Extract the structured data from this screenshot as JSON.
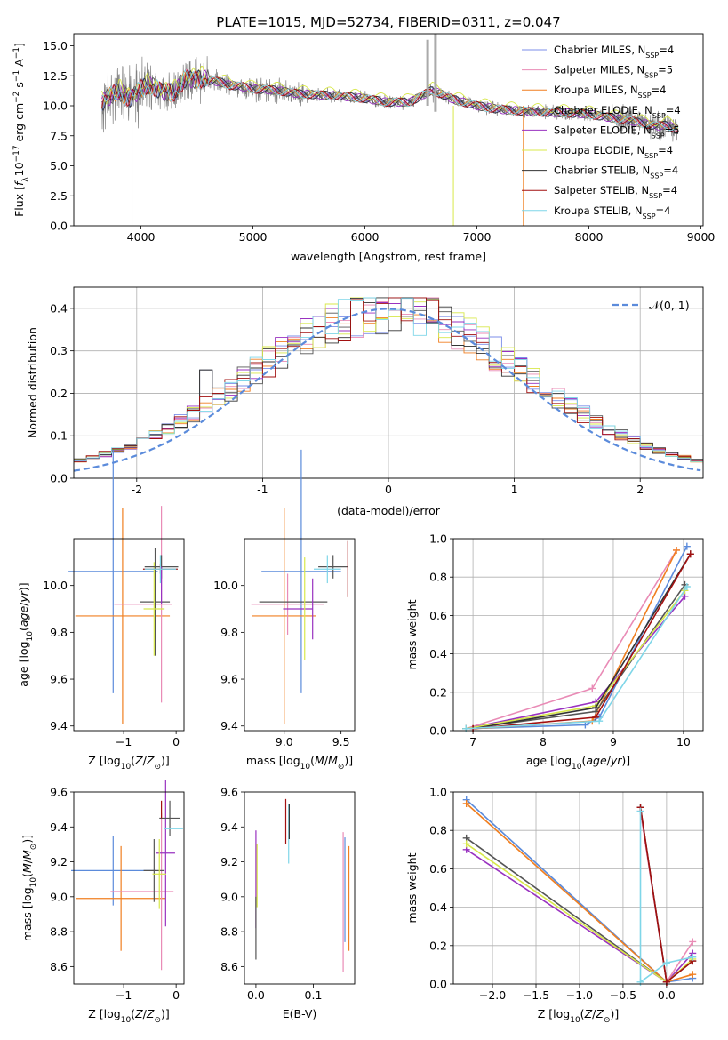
{
  "figure": {
    "title": "PLATE=1015, MJD=52734, FIBERID=0311, z=0.047",
    "fit_colors": [
      "#7b8ee8",
      "#e98bb6",
      "#f07f20",
      "#555555",
      "#9932c0",
      "#d8e84a",
      "#333333",
      "#a21010",
      "#7fd6e8"
    ]
  },
  "chart_data": [
    {
      "id": "spectrum",
      "type": "line",
      "title": "PLATE=1015, MJD=52734, FIBERID=0311, z=0.047",
      "xlabel": "wavelength [Angstrom, rest frame]",
      "ylabel": "Flux [f_λ 10^-17 erg cm^-2 s^-1 A^-1]",
      "xlim": [
        3400,
        9020
      ],
      "ylim": [
        0,
        16
      ],
      "x_ticks": [
        "4000",
        "5000",
        "6000",
        "7000",
        "8000",
        "9000"
      ],
      "y_ticks": [
        "0.0",
        "2.5",
        "5.0",
        "7.5",
        "10.0",
        "12.5",
        "15.0"
      ],
      "grid": false,
      "legend_position": "upper right",
      "legend": [
        {
          "label": "Chabrier MILES, N",
          "sub": "SSP",
          "tail": "=4"
        },
        {
          "label": "Salpeter MILES, N",
          "sub": "SSP",
          "tail": "=5"
        },
        {
          "label": "Kroupa MILES, N",
          "sub": "SSP",
          "tail": "=4"
        },
        {
          "label": "Chabrier ELODIE, N",
          "sub": "SSP",
          "tail": "=4"
        },
        {
          "label": "Salpeter ELODIE, N",
          "sub": "SSP",
          "tail": "=5"
        },
        {
          "label": "Kroupa ELODIE, N",
          "sub": "SSP",
          "tail": "=4"
        },
        {
          "label": "Chabrier STELIB, N",
          "sub": "SSP",
          "tail": "=4"
        },
        {
          "label": "Salpeter STELIB, N",
          "sub": "SSP",
          "tail": "=4"
        },
        {
          "label": "Kroupa STELIB, N",
          "sub": "SSP",
          "tail": "=4"
        }
      ],
      "data_color": "#808080",
      "continuum_points": [
        [
          3650,
          10.4
        ],
        [
          3800,
          11.1
        ],
        [
          3900,
          10.7
        ],
        [
          4000,
          11.4
        ],
        [
          4100,
          11.6
        ],
        [
          4200,
          11.3
        ],
        [
          4300,
          11.0
        ],
        [
          4400,
          12.3
        ],
        [
          4500,
          12.3
        ],
        [
          4600,
          12.1
        ],
        [
          4700,
          12.0
        ],
        [
          4800,
          11.7
        ],
        [
          4900,
          11.6
        ],
        [
          5000,
          11.4
        ],
        [
          5200,
          11.3
        ],
        [
          5400,
          11.0
        ],
        [
          5600,
          10.9
        ],
        [
          5800,
          10.8
        ],
        [
          6000,
          10.6
        ],
        [
          6200,
          10.3
        ],
        [
          6400,
          10.3
        ],
        [
          6600,
          11.3
        ],
        [
          6800,
          10.5
        ],
        [
          7000,
          10.0
        ],
        [
          7200,
          9.7
        ],
        [
          7500,
          9.5
        ],
        [
          7800,
          9.4
        ],
        [
          8000,
          9.3
        ],
        [
          8200,
          9.0
        ],
        [
          8400,
          8.7
        ],
        [
          8600,
          8.3
        ],
        [
          8700,
          8.4
        ],
        [
          8800,
          8.0
        ]
      ]
    },
    {
      "id": "residuals",
      "type": "step",
      "xlabel": "(data-model)/error",
      "ylabel": "Normed distribution",
      "xlim": [
        -2.5,
        2.5
      ],
      "ylim": [
        0,
        0.45
      ],
      "x_ticks": [
        "-2",
        "-1",
        "0",
        "1",
        "2"
      ],
      "y_ticks": [
        "0.0",
        "0.1",
        "0.2",
        "0.3",
        "0.4"
      ],
      "grid": true,
      "legend": "𝒩(0, 1)",
      "legend_position": "upper right",
      "normal_color": "#5b8bdb",
      "bin_width": 0.1
    },
    {
      "id": "age_vs_Z",
      "type": "errorbar",
      "xlabel": "Z [log10(Z/Z⊙)]",
      "ylabel": "age  [log10(age/yr)]",
      "xlim": [
        -1.95,
        0.15
      ],
      "ylim": [
        9.38,
        10.2
      ],
      "x_ticks": [
        -1,
        0
      ],
      "y_ticks": [
        9.4,
        9.6,
        9.8,
        10.0
      ],
      "points": [
        {
          "x": -1.2,
          "y": 10.06,
          "xerr": 0.85,
          "yerr": 0.52,
          "c": "#5b8bdb"
        },
        {
          "x": -1.02,
          "y": 9.87,
          "xerr": 0.9,
          "yerr": 0.46,
          "c": "#f07f20"
        },
        {
          "x": -0.63,
          "y": 9.92,
          "xerr": 0.55,
          "yerr": 0.0,
          "c": "#e98bb6"
        },
        {
          "x": -0.28,
          "y": 9.92,
          "xerr": 0.0,
          "yerr": 0.42,
          "c": "#e98bb6"
        },
        {
          "x": -0.4,
          "y": 9.93,
          "xerr": 0.28,
          "yerr": 0.23,
          "c": "#555555"
        },
        {
          "x": -0.42,
          "y": 9.9,
          "xerr": 0.2,
          "yerr": 0.2,
          "c": "#d8e84a"
        },
        {
          "x": -0.28,
          "y": 10.08,
          "xerr": 0.32,
          "yerr": 0.05,
          "c": "#555555"
        },
        {
          "x": -0.28,
          "y": 10.0,
          "xerr": 0.0,
          "yerr": 0.08,
          "c": "#9932c0"
        },
        {
          "x": -0.3,
          "y": 10.07,
          "xerr": 0.33,
          "yerr": 0.02,
          "c": "#a21010"
        },
        {
          "x": -0.3,
          "y": 10.07,
          "xerr": 0.3,
          "yerr": 0.06,
          "c": "#7fd6e8"
        }
      ]
    },
    {
      "id": "age_vs_mass",
      "type": "errorbar",
      "xlabel": "mass [log10(M/M⊙)]",
      "ylabel": "",
      "xlim": [
        8.65,
        9.62
      ],
      "ylim": [
        9.38,
        10.2
      ],
      "x_ticks": [
        9.0,
        9.5
      ],
      "y_ticks": [
        9.4,
        9.6,
        9.8,
        10.0
      ],
      "points": [
        {
          "x": 9.15,
          "y": 10.06,
          "xerr": 0.35,
          "yerr": 0.52,
          "c": "#5b8bdb"
        },
        {
          "x": 9.0,
          "y": 9.87,
          "xerr": 0.28,
          "yerr": 0.46,
          "c": "#f07f20"
        },
        {
          "x": 9.03,
          "y": 9.92,
          "xerr": 0.32,
          "yerr": 0.13,
          "c": "#e98bb6"
        },
        {
          "x": 9.08,
          "y": 9.93,
          "xerr": 0.3,
          "yerr": 0.0,
          "c": "#555555"
        },
        {
          "x": 9.12,
          "y": 9.9,
          "xerr": 0.13,
          "yerr": 0.0,
          "c": "#9932c0"
        },
        {
          "x": 9.25,
          "y": 9.9,
          "xerr": 0.0,
          "yerr": 0.13,
          "c": "#9932c0"
        },
        {
          "x": 9.18,
          "y": 9.9,
          "xerr": 0.0,
          "yerr": 0.22,
          "c": "#d8e84a"
        },
        {
          "x": 9.43,
          "y": 10.08,
          "xerr": 0.13,
          "yerr": 0.05,
          "c": "#555555"
        },
        {
          "x": 9.56,
          "y": 10.07,
          "xerr": 0.0,
          "yerr": 0.12,
          "c": "#a21010"
        },
        {
          "x": 9.38,
          "y": 10.07,
          "xerr": 0.12,
          "yerr": 0.06,
          "c": "#7fd6e8"
        }
      ]
    },
    {
      "id": "massweight_vs_age",
      "type": "line",
      "xlabel": "age  [log10(age/yr)]",
      "ylabel": "mass weight",
      "xlim": [
        6.72,
        10.28
      ],
      "ylim": [
        0,
        1.0
      ],
      "x_ticks": [
        7,
        8,
        9,
        10
      ],
      "y_ticks": [
        0.0,
        0.2,
        0.4,
        0.6,
        0.8,
        1.0
      ],
      "grid": true,
      "series": [
        {
          "c": "#5b8bdb",
          "x": [
            6.9,
            8.6,
            8.8,
            10.05
          ],
          "y": [
            0.01,
            0.03,
            0.07,
            0.96
          ]
        },
        {
          "c": "#e98bb6",
          "x": [
            6.9,
            8.7,
            9.9
          ],
          "y": [
            0.01,
            0.22,
            0.94
          ]
        },
        {
          "c": "#f07f20",
          "x": [
            7.0,
            8.7,
            9.9
          ],
          "y": [
            0.01,
            0.05,
            0.94
          ]
        },
        {
          "c": "#555555",
          "x": [
            6.9,
            8.75,
            10.02
          ],
          "y": [
            0.01,
            0.1,
            0.76
          ]
        },
        {
          "c": "#9932c0",
          "x": [
            6.9,
            8.75,
            10.02
          ],
          "y": [
            0.01,
            0.15,
            0.7
          ]
        },
        {
          "c": "#d8e84a",
          "x": [
            6.9,
            8.75,
            10.02
          ],
          "y": [
            0.01,
            0.13,
            0.73
          ]
        },
        {
          "c": "#333333",
          "x": [
            7.0,
            8.75,
            10.1
          ],
          "y": [
            0.01,
            0.12,
            0.92
          ]
        },
        {
          "c": "#a21010",
          "x": [
            7.0,
            8.75,
            10.1
          ],
          "y": [
            0.01,
            0.07,
            0.92
          ]
        },
        {
          "c": "#7fd6e8",
          "x": [
            6.9,
            8.8,
            10.05
          ],
          "y": [
            0.01,
            0.05,
            0.75
          ]
        }
      ]
    },
    {
      "id": "mass_vs_Z",
      "type": "errorbar",
      "xlabel": "Z [log10(Z/Z⊙)]",
      "ylabel": "mass [log10(M/M⊙)]",
      "xlim": [
        -1.95,
        0.15
      ],
      "ylim": [
        8.5,
        9.6
      ],
      "x_ticks": [
        -1,
        0
      ],
      "y_ticks": [
        8.6,
        8.8,
        9.0,
        9.2,
        9.4,
        9.6
      ],
      "points": [
        {
          "x": -1.2,
          "y": 9.15,
          "xerr": 0.8,
          "yerr": 0.2,
          "c": "#5b8bdb"
        },
        {
          "x": -1.05,
          "y": 8.99,
          "xerr": 0.85,
          "yerr": 0.3,
          "c": "#f07f20"
        },
        {
          "x": -0.65,
          "y": 9.03,
          "xerr": 0.6,
          "yerr": 0.0,
          "c": "#e98bb6"
        },
        {
          "x": -0.28,
          "y": 9.03,
          "xerr": 0.0,
          "yerr": 0.45,
          "c": "#e98bb6"
        },
        {
          "x": -0.42,
          "y": 9.15,
          "xerr": 0.2,
          "yerr": 0.18,
          "c": "#555555"
        },
        {
          "x": -0.2,
          "y": 9.25,
          "xerr": 0.18,
          "yerr": 0.42,
          "c": "#9932c0"
        },
        {
          "x": -0.32,
          "y": 9.13,
          "xerr": 0.13,
          "yerr": 0.2,
          "c": "#d8e84a"
        },
        {
          "x": -0.12,
          "y": 9.45,
          "xerr": 0.2,
          "yerr": 0.1,
          "c": "#555555"
        },
        {
          "x": -0.28,
          "y": 9.5,
          "xerr": 0.0,
          "yerr": 0.05,
          "c": "#a21010"
        },
        {
          "x": -0.05,
          "y": 9.39,
          "xerr": 0.18,
          "yerr": 0.0,
          "c": "#7fd6e8"
        }
      ]
    },
    {
      "id": "mass_vs_EBV",
      "type": "errorbar",
      "xlabel": "E(B-V)",
      "ylabel": "",
      "xlim": [
        -0.02,
        0.172
      ],
      "ylim": [
        8.5,
        9.6
      ],
      "x_ticks": [
        0.0,
        0.1
      ],
      "y_ticks": [
        8.6,
        8.8,
        9.0,
        9.2,
        9.4,
        9.6
      ],
      "points": [
        {
          "x": 0.0,
          "y": 9.1,
          "xerr": 0,
          "yerr": 0.28,
          "c": "#9932c0"
        },
        {
          "x": 0.002,
          "y": 9.12,
          "xerr": 0,
          "yerr": 0.18,
          "c": "#d8e84a"
        },
        {
          "x": 0.0,
          "y": 8.82,
          "xerr": 0,
          "yerr": 0.18,
          "c": "#555555"
        },
        {
          "x": 0.052,
          "y": 9.43,
          "xerr": 0,
          "yerr": 0.13,
          "c": "#a21010"
        },
        {
          "x": 0.057,
          "y": 9.36,
          "xerr": 0,
          "yerr": 0.17,
          "c": "#7fd6e8"
        },
        {
          "x": 0.058,
          "y": 9.43,
          "xerr": 0,
          "yerr": 0.1,
          "c": "#333333"
        },
        {
          "x": 0.152,
          "y": 8.97,
          "xerr": 0,
          "yerr": 0.4,
          "c": "#e98bb6"
        },
        {
          "x": 0.155,
          "y": 9.04,
          "xerr": 0,
          "yerr": 0.3,
          "c": "#5b8bdb"
        },
        {
          "x": 0.162,
          "y": 8.99,
          "xerr": 0,
          "yerr": 0.3,
          "c": "#f07f20"
        }
      ]
    },
    {
      "id": "massweight_vs_Z",
      "type": "line",
      "xlabel": "Z [log10(Z/Z⊙)]",
      "ylabel": "mass weight",
      "xlim": [
        -2.45,
        0.42
      ],
      "ylim": [
        0,
        1.0
      ],
      "x_ticks": [
        -2.0,
        -1.5,
        -1.0,
        -0.5,
        0.0
      ],
      "y_ticks": [
        0.0,
        0.2,
        0.4,
        0.6,
        0.8,
        1.0
      ],
      "grid": true,
      "series": [
        {
          "c": "#5b8bdb",
          "x": [
            -2.3,
            0.0,
            0.3
          ],
          "y": [
            0.96,
            0.01,
            0.03
          ]
        },
        {
          "c": "#f07f20",
          "x": [
            -2.3,
            0.0,
            0.3
          ],
          "y": [
            0.94,
            0.01,
            0.05
          ]
        },
        {
          "c": "#555555",
          "x": [
            -2.3,
            0.0,
            0.3
          ],
          "y": [
            0.76,
            0.01,
            0.12
          ]
        },
        {
          "c": "#9932c0",
          "x": [
            -2.3,
            0.0,
            0.3
          ],
          "y": [
            0.7,
            0.01,
            0.16
          ]
        },
        {
          "c": "#d8e84a",
          "x": [
            -2.3,
            0.0,
            0.3
          ],
          "y": [
            0.73,
            0.01,
            0.13
          ]
        },
        {
          "c": "#e98bb6",
          "x": [
            -0.3,
            0.0,
            0.3
          ],
          "y": [
            0.9,
            0.01,
            0.22
          ]
        },
        {
          "c": "#333333",
          "x": [
            -0.3,
            0.0
          ],
          "y": [
            0.92,
            0.01
          ]
        },
        {
          "c": "#a21010",
          "x": [
            -0.3,
            0.0,
            0.3
          ],
          "y": [
            0.92,
            0.01,
            0.12
          ]
        },
        {
          "c": "#7fd6e8",
          "x": [
            -0.3,
            -0.3,
            0.0,
            0.3
          ],
          "y": [
            0.9,
            0.01,
            0.11,
            0.14
          ]
        }
      ]
    }
  ]
}
